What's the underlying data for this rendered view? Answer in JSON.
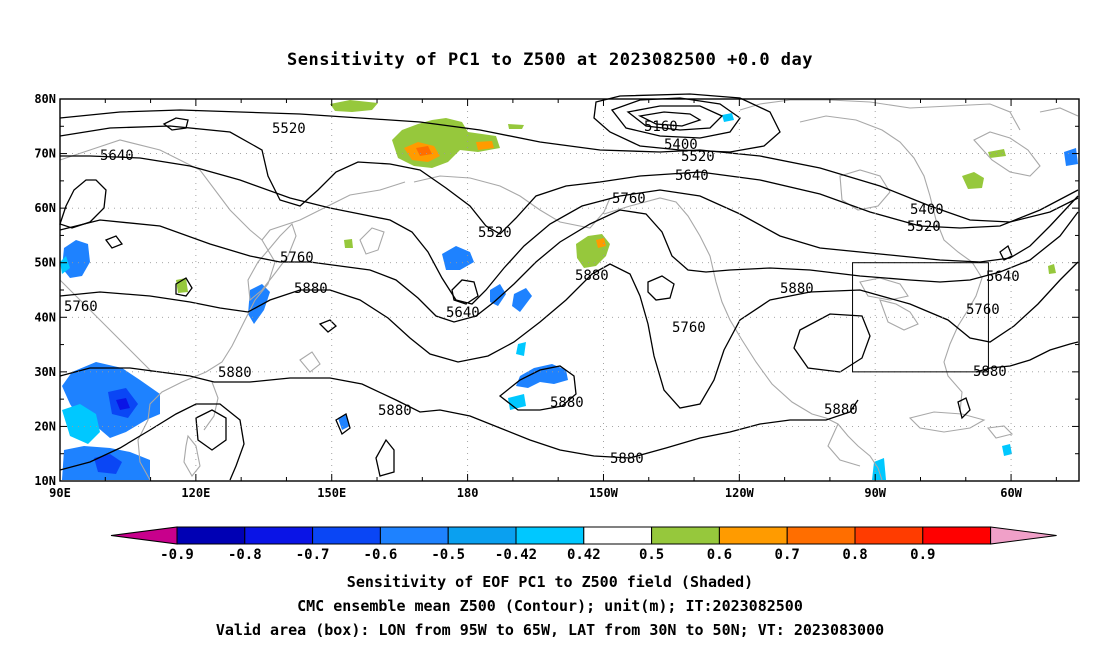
{
  "title": "Sensitivity of PC1 to Z500 at 2023082500 +0.0 day",
  "captions": [
    "Sensitivity of EOF PC1 to Z500 field (Shaded)",
    "CMC ensemble mean Z500 (Contour); unit(m); IT:2023082500",
    "Valid area (box): LON from 95W to 65W, LAT from 30N to 50N; VT: 2023083000"
  ],
  "map": {
    "lon_range_east": [
      90,
      315
    ],
    "lat_range": [
      10,
      80
    ],
    "lon_ticks": [
      "90E",
      "120E",
      "150E",
      "180",
      "150W",
      "120W",
      "90W",
      "60W"
    ],
    "lat_ticks": [
      "80N",
      "70N",
      "60N",
      "50N",
      "40N",
      "30N",
      "20N",
      "10N"
    ],
    "valid_box": {
      "lon_west": 95,
      "lon_east": 65,
      "lat_south": 30,
      "lat_north": 50
    },
    "contour_labels": [
      "5520",
      "5640",
      "5160",
      "5400",
      "5520",
      "5640",
      "5760",
      "5520",
      "5760",
      "5880",
      "5400",
      "5520",
      "5640",
      "5760",
      "5880",
      "5880",
      "5640",
      "5760",
      "5880",
      "5880",
      "5880",
      "5880",
      "5880",
      "5880",
      "5760"
    ],
    "colors": {
      "contour": "#000000",
      "coastline": "#a8a8a8",
      "grid": "#9a9a9a"
    }
  },
  "colorbar": {
    "labels": [
      "-0.9",
      "-0.8",
      "-0.7",
      "-0.6",
      "-0.5",
      "-0.42",
      "0.42",
      "0.5",
      "0.6",
      "0.7",
      "0.8",
      "0.9"
    ],
    "colors": [
      "#c8008c",
      "#0000b4",
      "#0a14e6",
      "#0a46f5",
      "#1e82ff",
      "#0aa0f0",
      "#00c8ff",
      "#ffffff",
      "#96c83c",
      "#ff9b00",
      "#ff6e00",
      "#ff3c00",
      "#ff0000",
      "#f0a0c8"
    ]
  }
}
